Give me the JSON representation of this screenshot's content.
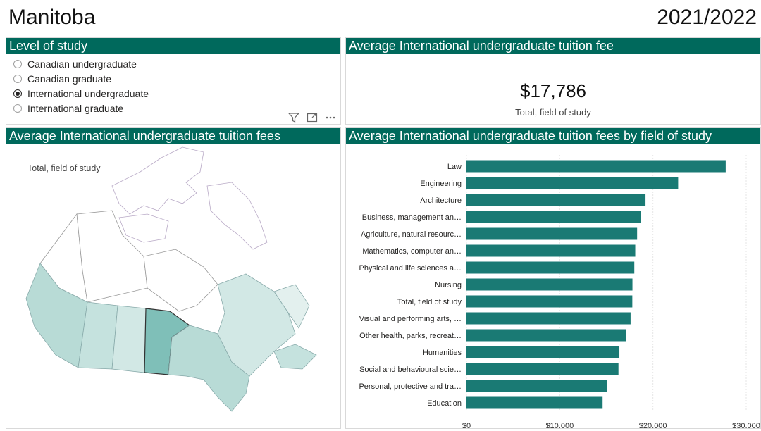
{
  "header": {
    "region": "Manitoba",
    "year": "2021/2022"
  },
  "level_panel": {
    "title": "Level of study",
    "options": [
      {
        "label": "Canadian undergraduate",
        "selected": false
      },
      {
        "label": "Canadian graduate",
        "selected": false
      },
      {
        "label": "International undergraduate",
        "selected": true
      },
      {
        "label": "International graduate",
        "selected": false
      }
    ],
    "icons": [
      "filter-icon",
      "focus-mode-icon",
      "more-options-icon"
    ]
  },
  "kpi_panel": {
    "title": "Average International undergraduate tuition fee",
    "value": "$17,786",
    "label": "Total, field of study"
  },
  "map_panel": {
    "title": "Average International undergraduate tuition fees",
    "subtitle": "Total, field of study",
    "highlight_color": "#7fbfb8",
    "shade_colors": [
      "#b8dbd6",
      "#c5e2de",
      "#d2e8e5",
      "#e3f0ee",
      "#eef6f5"
    ]
  },
  "bar_panel": {
    "title": "Average International undergraduate tuition fees by field of study"
  },
  "chart_data": {
    "type": "bar",
    "orientation": "horizontal",
    "categories": [
      "Law",
      "Engineering",
      "Architecture",
      "Business, management an…",
      "Agriculture, natural resourc…",
      "Mathematics, computer an…",
      "Physical and life sciences a…",
      "Nursing",
      "Total, field of study",
      "Visual and performing arts, …",
      "Other health, parks, recreat…",
      "Humanities",
      "Social and behavioural scie…",
      "Personal, protective and tra…",
      "Education"
    ],
    "values": [
      27800,
      22700,
      19200,
      18700,
      18300,
      18100,
      18000,
      17800,
      17786,
      17600,
      17100,
      16400,
      16300,
      15100,
      14600
    ],
    "xlim": [
      0,
      30000
    ],
    "xticks": [
      "$0",
      "$10,000",
      "$20,000",
      "$30,000"
    ],
    "bar_color": "#1a7a74",
    "grid": true
  }
}
